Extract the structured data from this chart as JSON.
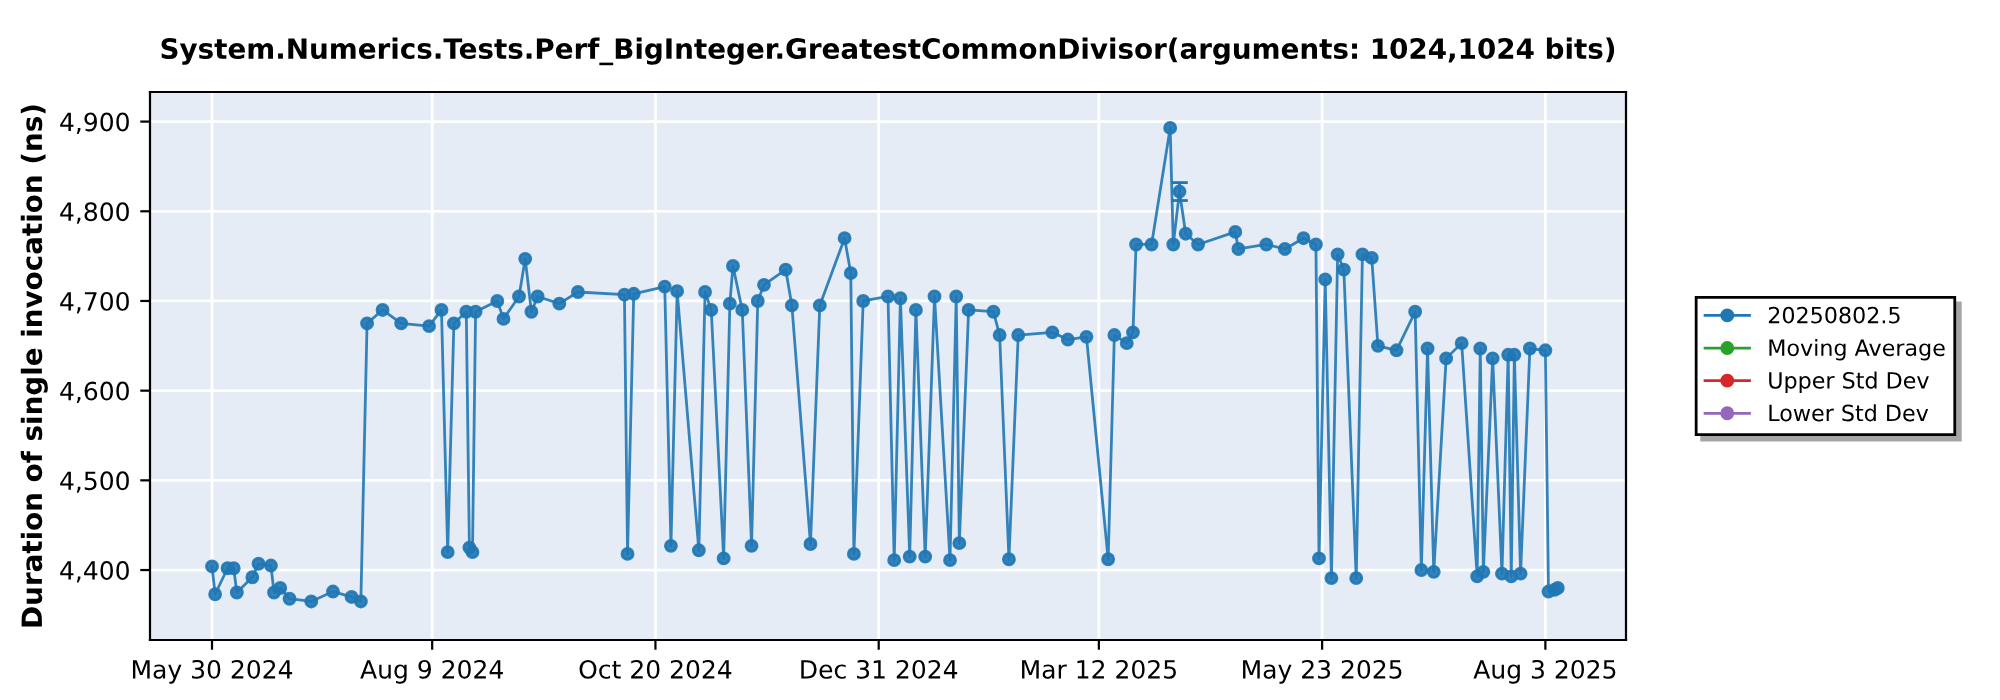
{
  "chart_data": {
    "type": "line",
    "title": "System.Numerics.Tests.Perf_BigInteger.GreatestCommonDivisor(arguments: 1024,1024 bits)",
    "ylabel": "Duration of single invocation (ns)",
    "series": [
      {
        "name": "20250802.5",
        "color": "#1f77b4",
        "x": [
          "2024-05-30",
          "2024-05-31",
          "2024-06-04",
          "2024-06-06",
          "2024-06-07",
          "2024-06-12",
          "2024-06-14",
          "2024-06-18",
          "2024-06-19",
          "2024-06-21",
          "2024-06-24",
          "2024-07-01",
          "2024-07-08",
          "2024-07-14",
          "2024-07-17",
          "2024-07-19",
          "2024-07-24",
          "2024-07-30",
          "2024-08-08",
          "2024-08-12",
          "2024-08-14",
          "2024-08-16",
          "2024-08-20",
          "2024-08-21",
          "2024-08-22",
          "2024-08-23",
          "2024-08-30",
          "2024-09-01",
          "2024-09-06",
          "2024-09-08",
          "2024-09-10",
          "2024-09-12",
          "2024-09-19",
          "2024-09-25",
          "2024-10-10",
          "2024-10-11",
          "2024-10-13",
          "2024-10-23",
          "2024-10-25",
          "2024-10-27",
          "2024-11-03",
          "2024-11-05",
          "2024-11-07",
          "2024-11-11",
          "2024-11-13",
          "2024-11-14",
          "2024-11-17",
          "2024-11-20",
          "2024-11-22",
          "2024-11-24",
          "2024-12-01",
          "2024-12-03",
          "2024-12-09",
          "2024-12-12",
          "2024-12-20",
          "2024-12-22",
          "2024-12-23",
          "2024-12-26",
          "2025-01-03",
          "2025-01-05",
          "2025-01-07",
          "2025-01-10",
          "2025-01-12",
          "2025-01-15",
          "2025-01-18",
          "2025-01-23",
          "2025-01-25",
          "2025-01-26",
          "2025-01-29",
          "2025-02-06",
          "2025-02-08",
          "2025-02-11",
          "2025-02-14",
          "2025-02-25",
          "2025-03-02",
          "2025-03-08",
          "2025-03-15",
          "2025-03-17",
          "2025-03-21",
          "2025-03-23",
          "2025-03-24",
          "2025-03-29",
          "2025-04-04",
          "2025-04-05",
          "2025-04-07",
          "2025-04-09",
          "2025-04-13",
          "2025-04-25",
          "2025-04-26",
          "2025-05-05",
          "2025-05-11",
          "2025-05-17",
          "2025-05-21",
          "2025-05-22",
          "2025-05-24",
          "2025-05-26",
          "2025-05-28",
          "2025-05-30",
          "2025-06-03",
          "2025-06-05",
          "2025-06-08",
          "2025-06-10",
          "2025-06-16",
          "2025-06-22",
          "2025-06-24",
          "2025-06-26",
          "2025-06-28",
          "2025-07-02",
          "2025-07-07",
          "2025-07-12",
          "2025-07-13",
          "2025-07-14",
          "2025-07-17",
          "2025-07-20",
          "2025-07-22",
          "2025-07-23",
          "2025-07-24",
          "2025-07-26",
          "2025-07-29",
          "2025-08-03",
          "2025-08-04",
          "2025-08-06",
          "2025-08-07"
        ],
        "values": [
          4404,
          4373,
          4402,
          4402,
          4375,
          4392,
          4407,
          4405,
          4375,
          4380,
          4368,
          4365,
          4376,
          4370,
          4365,
          4675,
          4690,
          4675,
          4672,
          4690,
          4420,
          4675,
          4688,
          4425,
          4420,
          4688,
          4700,
          4680,
          4705,
          4747,
          4688,
          4705,
          4697,
          4710,
          4707,
          4418,
          4708,
          4716,
          4427,
          4711,
          4422,
          4710,
          4690,
          4413,
          4697,
          4739,
          4690,
          4427,
          4700,
          4718,
          4735,
          4695,
          4429,
          4695,
          4770,
          4731,
          4418,
          4700,
          4705,
          4411,
          4703,
          4415,
          4690,
          4415,
          4705,
          4411,
          4705,
          4430,
          4690,
          4688,
          4662,
          4412,
          4662,
          4665,
          4657,
          4660,
          4412,
          4662,
          4653,
          4665,
          4763,
          4763,
          4893,
          4763,
          4822,
          4775,
          4763,
          4777,
          4758,
          4763,
          4758,
          4770,
          4763,
          4413,
          4724,
          4391,
          4752,
          4735,
          4391,
          4752,
          4748,
          4650,
          4645,
          4688,
          4400,
          4647,
          4398,
          4636,
          4653,
          4393,
          4647,
          4398,
          4636,
          4396,
          4640,
          4393,
          4640,
          4396,
          4647,
          4645,
          4376,
          4378,
          4380
        ],
        "errors": [
          null,
          null,
          null,
          null,
          null,
          null,
          null,
          null,
          null,
          null,
          null,
          null,
          null,
          null,
          null,
          null,
          null,
          null,
          null,
          null,
          null,
          null,
          null,
          null,
          null,
          null,
          null,
          null,
          null,
          null,
          null,
          null,
          null,
          null,
          null,
          null,
          null,
          null,
          null,
          null,
          null,
          null,
          null,
          null,
          null,
          null,
          null,
          null,
          null,
          null,
          null,
          null,
          null,
          null,
          null,
          null,
          null,
          null,
          null,
          null,
          null,
          null,
          null,
          null,
          null,
          null,
          null,
          null,
          null,
          null,
          null,
          null,
          null,
          null,
          null,
          null,
          null,
          null,
          null,
          null,
          null,
          null,
          null,
          null,
          10,
          null,
          null,
          null,
          null,
          null,
          null,
          null,
          null,
          null,
          null,
          null,
          null,
          null,
          null,
          null,
          null,
          null,
          null,
          null,
          null,
          null,
          null,
          null,
          null,
          null,
          null,
          null,
          null,
          null,
          null,
          null,
          null,
          null,
          null,
          null,
          null,
          null,
          null
        ]
      },
      {
        "name": "Moving Average",
        "color": "#2ca02c"
      },
      {
        "name": "Upper Std Dev",
        "color": "#d62728"
      },
      {
        "name": "Lower Std Dev",
        "color": "#9467bd"
      }
    ],
    "xlim": [
      "2024-05-10",
      "2025-08-29"
    ],
    "xticks": [
      {
        "value": "2024-05-30",
        "label": "May 30 2024"
      },
      {
        "value": "2024-08-09",
        "label": "Aug 9 2024"
      },
      {
        "value": "2024-10-20",
        "label": "Oct 20 2024"
      },
      {
        "value": "2024-12-31",
        "label": "Dec 31 2024"
      },
      {
        "value": "2025-03-12",
        "label": "Mar 12 2025"
      },
      {
        "value": "2025-05-23",
        "label": "May 23 2025"
      },
      {
        "value": "2025-08-03",
        "label": "Aug 3 2025"
      }
    ],
    "ylim": [
      4322,
      4933
    ],
    "yticks": [
      {
        "value": 4400,
        "label": "4,400"
      },
      {
        "value": 4500,
        "label": "4,500"
      },
      {
        "value": 4600,
        "label": "4,600"
      },
      {
        "value": 4700,
        "label": "4,700"
      },
      {
        "value": 4800,
        "label": "4,800"
      },
      {
        "value": 4900,
        "label": "4,900"
      }
    ],
    "grid": true,
    "legend": "right",
    "marker": "circle",
    "line_style": "solid"
  }
}
